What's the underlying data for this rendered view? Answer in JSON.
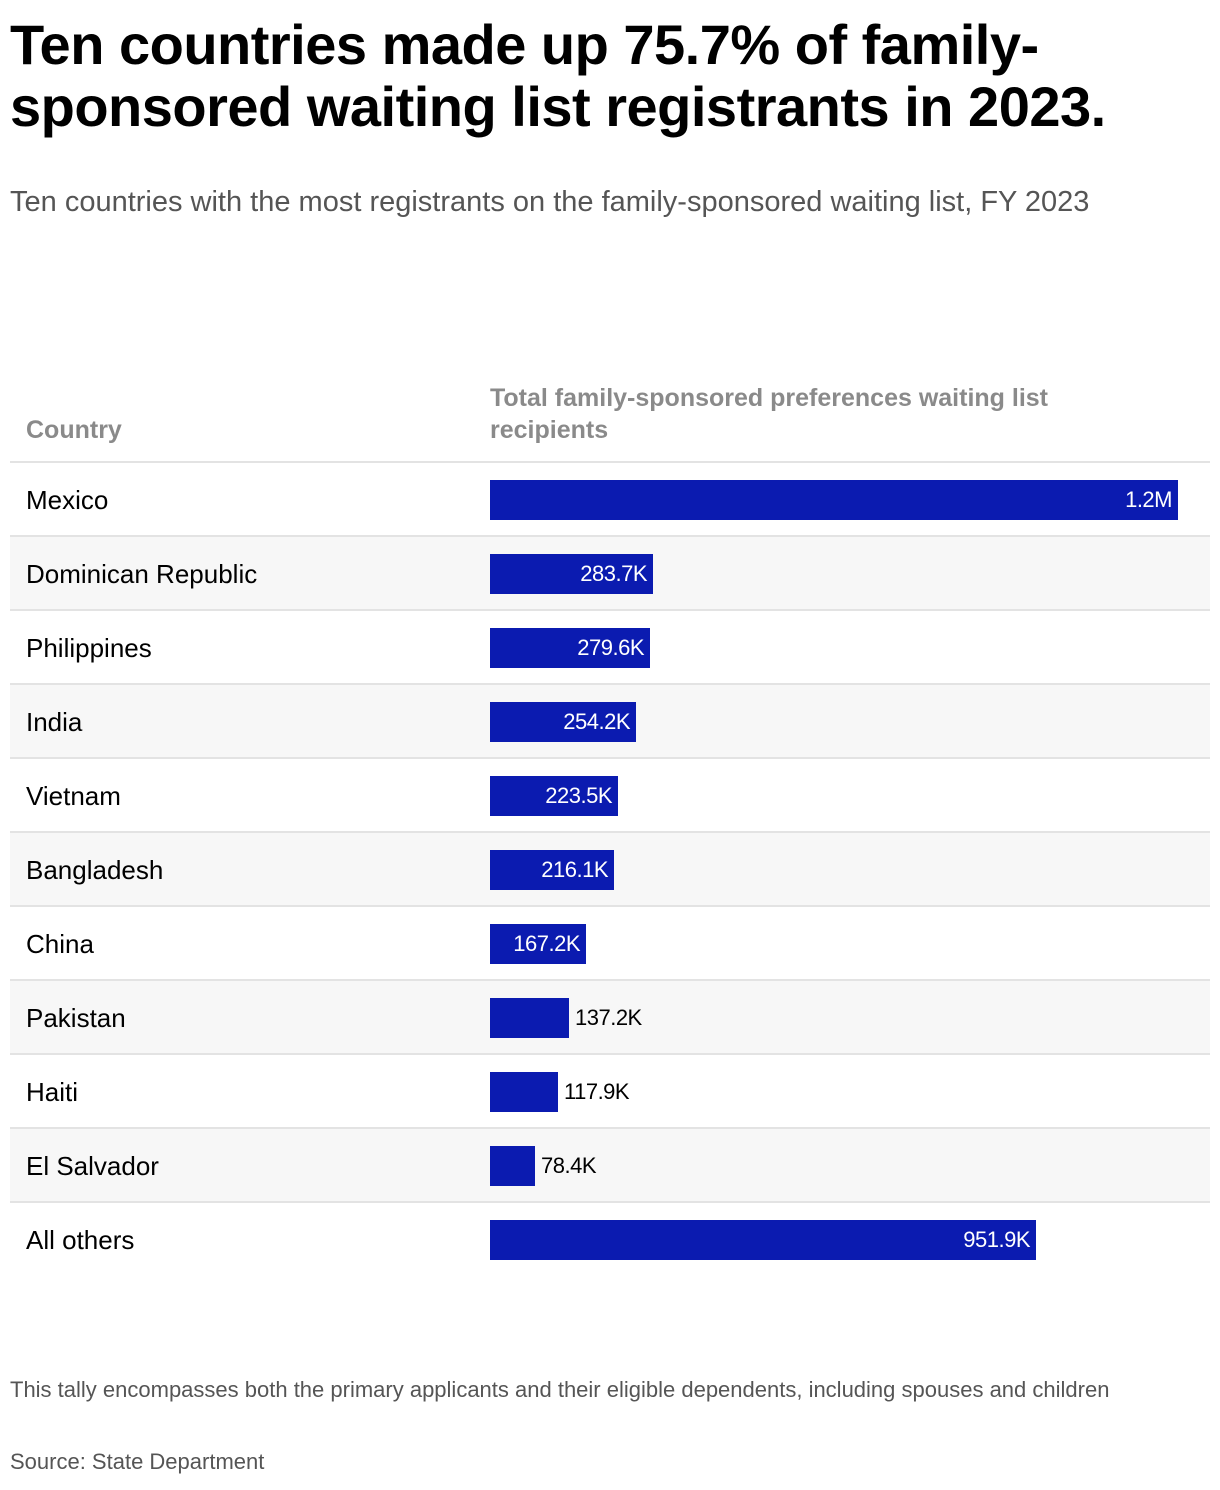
{
  "title": "Ten countries made up 75.7% of family-sponsored waiting list registrants in 2023.",
  "subtitle": "Ten countries with the most registrants on the family-sponsored waiting list, FY 2023",
  "columns": {
    "country": "Country",
    "value": "Total family-sponsored preferences waiting list recipients"
  },
  "chart_data": {
    "type": "bar",
    "orientation": "horizontal",
    "title": "Ten countries made up 75.7% of family-sponsored waiting list registrants in 2023.",
    "categories": [
      "Mexico",
      "Dominican Republic",
      "Philippines",
      "India",
      "Vietnam",
      "Bangladesh",
      "China",
      "Pakistan",
      "Haiti",
      "El Salvador",
      "All others"
    ],
    "values": [
      1200000,
      283700,
      279600,
      254200,
      223500,
      216100,
      167200,
      137200,
      117900,
      78400,
      951900
    ],
    "labels": [
      "1.2M",
      "283.7K",
      "279.6K",
      "254.2K",
      "223.5K",
      "216.1K",
      "167.2K",
      "137.2K",
      "117.9K",
      "78.4K",
      "951.9K"
    ],
    "bar_color": "#0b1bb0",
    "grid": false,
    "legend": "none"
  },
  "footnote": "This tally encompasses both the primary applicants and their eligible dependents, including spouses and children",
  "source": "Source: State Department"
}
